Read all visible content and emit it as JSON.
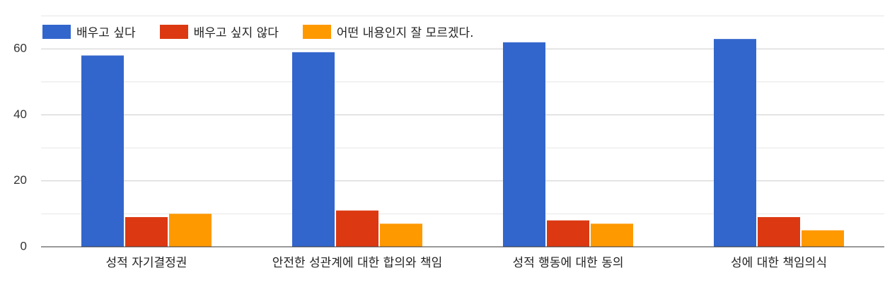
{
  "chart_data": {
    "type": "bar",
    "categories": [
      "성적 자기결정권",
      "안전한 성관계에 대한 합의와 책임",
      "성적 행동에 대한 동의",
      "성에 대한 책임의식"
    ],
    "series": [
      {
        "name": "배우고 싶다",
        "color": "#3366cc",
        "values": [
          58,
          59,
          62,
          63
        ]
      },
      {
        "name": "배우고 싶지 않다",
        "color": "#dc3912",
        "values": [
          9,
          11,
          8,
          9
        ]
      },
      {
        "name": "어떤 내용인지 잘 모르겠다.",
        "color": "#ff9900",
        "values": [
          10,
          7,
          7,
          5
        ]
      }
    ],
    "ylim": [
      0,
      70
    ],
    "yticks": [
      0,
      20,
      40,
      60
    ],
    "minor_yticks": [
      10,
      30,
      50,
      70
    ],
    "grid": true,
    "legend": "top"
  }
}
